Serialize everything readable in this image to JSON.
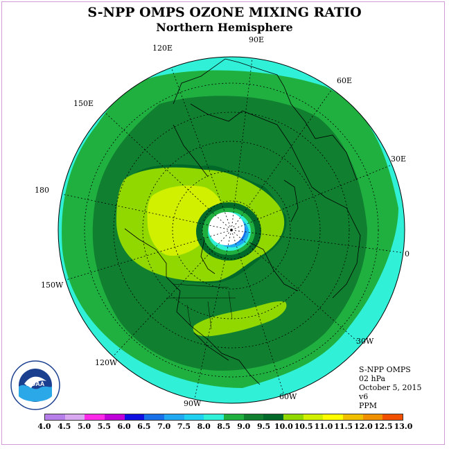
{
  "title": "S-NPP OMPS OZONE MIXING RATIO",
  "subtitle": "Northern Hemisphere",
  "map": {
    "projection": "polar stereographic",
    "longitude_labels": [
      "90E",
      "60E",
      "30E",
      "0",
      "30W",
      "60W",
      "90W",
      "120W",
      "150W",
      "180",
      "150E",
      "120E"
    ]
  },
  "info": {
    "line1": "S-NPP OMPS",
    "line2": "02 hPa",
    "line3": "October 5, 2015",
    "line4": "v6",
    "line5": "PPM"
  },
  "colorbar": {
    "ticks": [
      "4.0",
      "4.5",
      "5.0",
      "5.5",
      "6.0",
      "6.5",
      "7.0",
      "7.5",
      "8.0",
      "8.5",
      "9.0",
      "9.5",
      "10.0",
      "10.5",
      "11.0",
      "11.5",
      "12.0",
      "12.5",
      "13.0"
    ],
    "colors": [
      "#b57ee8",
      "#d8a8f0",
      "#ff2ae8",
      "#c000d8",
      "#1010e0",
      "#1870e8",
      "#20a8f0",
      "#20d0f0",
      "#30f0d8",
      "#20b040",
      "#108030",
      "#006828",
      "#90d800",
      "#d0f000",
      "#ffff00",
      "#f0c000",
      "#f09000",
      "#f05000",
      "#e00000",
      "#8b5030"
    ]
  },
  "logo": {
    "text": "NOAA",
    "ring_text": "NATIONAL OCEANIC AND ATMOSPHERIC ADMINISTRATION · U.S. DEPARTMENT OF COMMERCE"
  }
}
